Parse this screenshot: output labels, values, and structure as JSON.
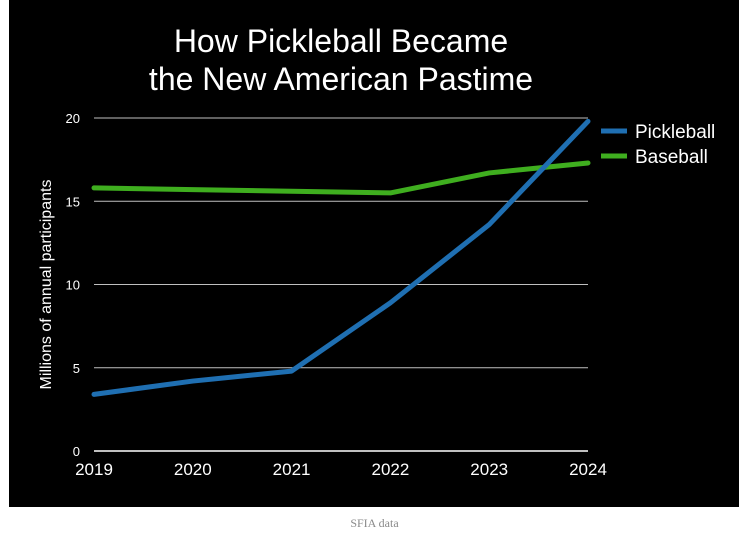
{
  "chart_data": {
    "type": "line",
    "title_lines": [
      "How Pickleball Became",
      "the New American Pastime"
    ],
    "xlabel": "",
    "ylabel": "Millions of annual participants",
    "x": [
      "2019",
      "2020",
      "2021",
      "2022",
      "2023",
      "2024"
    ],
    "y_ticks": [
      "0",
      "5",
      "10",
      "15",
      "20"
    ],
    "ylim": [
      0,
      20
    ],
    "grid": true,
    "legend_position": "top-right",
    "series": [
      {
        "name": "Pickleball",
        "color": "#1f6fb2",
        "values": [
          3.4,
          4.2,
          4.8,
          8.9,
          13.6,
          19.8
        ]
      },
      {
        "name": "Baseball",
        "color": "#3fae1f",
        "values": [
          15.8,
          15.7,
          15.6,
          15.5,
          16.7,
          17.3
        ]
      }
    ]
  },
  "caption": "SFIA data"
}
